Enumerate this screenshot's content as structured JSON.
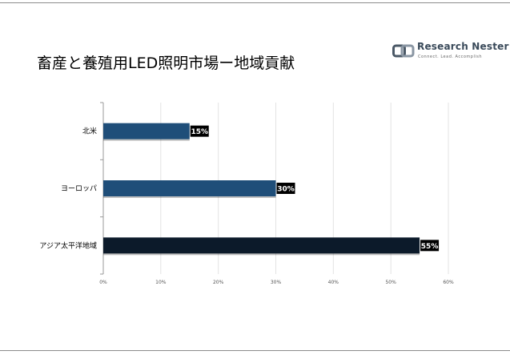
{
  "chart_data": {
    "type": "bar",
    "orientation": "horizontal",
    "title": "畜産と養殖用LED照明市場ー地域貢献",
    "categories": [
      "北米",
      "ヨーロッパ",
      "アジア太平洋地域"
    ],
    "values": [
      15,
      30,
      55
    ],
    "value_labels": [
      "15%",
      "30%",
      "55%"
    ],
    "bar_colors": [
      "#1f4e79",
      "#1f4e79",
      "#0c1a2a"
    ],
    "xlim": [
      0,
      60
    ],
    "xticks": [
      0,
      10,
      20,
      30,
      40,
      50,
      60
    ],
    "xtick_labels": [
      "0%",
      "10%",
      "20%",
      "30%",
      "40%",
      "50%",
      "60%"
    ],
    "grid": "vertical",
    "xlabel": "",
    "ylabel": ""
  },
  "logo": {
    "name": "Research Nester",
    "tagline": "Connect. Lead. Accomplish"
  },
  "colors": {
    "accent": "#1f4e79",
    "dark": "#0c1a2a",
    "grid": "#e3e3e3",
    "label_bg": "#000000"
  }
}
